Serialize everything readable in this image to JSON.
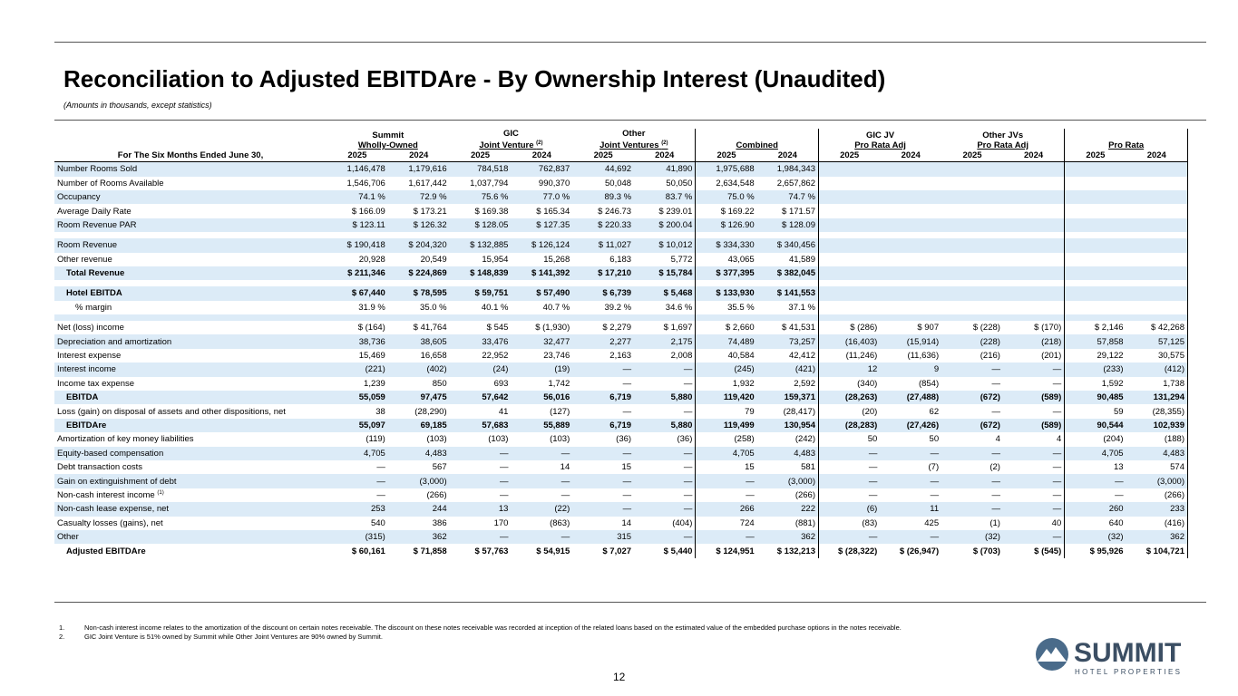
{
  "header": {
    "title": "Reconciliation to Adjusted EBITDAre - By Ownership Interest (Unaudited)",
    "subtitle": "(Amounts in thousands, except statistics)"
  },
  "table": {
    "stub_header": "For The Six Months Ended June 30,",
    "groups": [
      {
        "lines": [
          "Summit",
          "Wholly-Owned"
        ]
      },
      {
        "lines": [
          "GIC",
          "Joint Venture"
        ],
        "note": "(2)"
      },
      {
        "lines": [
          "Other",
          "Joint Ventures"
        ],
        "note": "(2)"
      },
      {
        "lines": [
          "Combined"
        ],
        "boxed": true
      },
      {
        "lines": [
          "GIC JV",
          "Pro Rata Adj"
        ]
      },
      {
        "lines": [
          "Other JVs",
          "Pro Rata Adj"
        ]
      },
      {
        "lines": [
          "Pro Rata"
        ],
        "boxed": true
      }
    ],
    "years": [
      "2025",
      "2024",
      "2025",
      "2024",
      "2025",
      "2024",
      "2025",
      "2024",
      "2025",
      "2024",
      "2025",
      "2024",
      "2025",
      "2024"
    ],
    "sections": [
      [
        {
          "label": "Number Rooms Sold",
          "cells": [
            "1,146,478",
            "1,179,616",
            "784,518",
            "762,837",
            "44,692",
            "41,890",
            "1,975,688",
            "1,984,343"
          ]
        },
        {
          "label": "Number of Rooms Available",
          "cells": [
            "1,546,706",
            "1,617,442",
            "1,037,794",
            "990,370",
            "50,048",
            "50,050",
            "2,634,548",
            "2,657,862"
          ]
        },
        {
          "label": "Occupancy",
          "cells": [
            "74.1 %",
            "72.9 %",
            "75.6 %",
            "77.0 %",
            "89.3 %",
            "83.7 %",
            "75.0 %",
            "74.7 %"
          ]
        },
        {
          "label": "Average Daily Rate",
          "cells": [
            "$ 166.09",
            "$ 173.21",
            "$ 169.38",
            "$ 165.34",
            "$ 246.73",
            "$ 239.01",
            "$ 169.22",
            "$ 171.57"
          ]
        },
        {
          "label": "Room Revenue PAR",
          "cells": [
            "$ 123.11",
            "$ 126.32",
            "$ 128.05",
            "$ 127.35",
            "$ 220.33",
            "$ 200.04",
            "$ 126.90",
            "$ 128.09"
          ]
        }
      ],
      [
        {
          "label": "Room Revenue",
          "cells": [
            "$ 190,418",
            "$ 204,320",
            "$ 132,885",
            "$ 126,124",
            "$ 11,027",
            "$ 10,012",
            "$ 334,330",
            "$ 340,456"
          ]
        },
        {
          "label": "Other revenue",
          "cells": [
            "20,928",
            "20,549",
            "15,954",
            "15,268",
            "6,183",
            "5,772",
            "43,065",
            "41,589"
          ]
        },
        {
          "label": "Total Revenue",
          "bold": true,
          "indent": 1,
          "cells": [
            "$ 211,346",
            "$ 224,869",
            "$ 148,839",
            "$ 141,392",
            "$ 17,210",
            "$ 15,784",
            "$ 377,395",
            "$ 382,045"
          ]
        }
      ],
      [
        {
          "label": "Hotel EBITDA",
          "bold": true,
          "indent": 1,
          "cells": [
            "$ 67,440",
            "$ 78,595",
            "$ 59,751",
            "$ 57,490",
            "$ 6,739",
            "$ 5,468",
            "$ 133,930",
            "$ 141,553"
          ]
        },
        {
          "label": "% margin",
          "indent": 2,
          "cells": [
            "31.9 %",
            "35.0 %",
            "40.1 %",
            "40.7 %",
            "39.2 %",
            "34.6 %",
            "35.5 %",
            "37.1 %"
          ]
        }
      ],
      [
        {
          "label": "Net (loss) income",
          "cells": [
            "$ (164)",
            "$ 41,764",
            "$ 545",
            "$ (1,930)",
            "$ 2,279",
            "$ 1,697",
            "$ 2,660",
            "$ 41,531",
            "$ (286)",
            "$ 907",
            "$ (228)",
            "$ (170)",
            "$ 2,146",
            "$ 42,268"
          ]
        },
        {
          "label": "Depreciation and amortization",
          "cells": [
            "38,736",
            "38,605",
            "33,476",
            "32,477",
            "2,277",
            "2,175",
            "74,489",
            "73,257",
            "(16,403)",
            "(15,914)",
            "(228)",
            "(218)",
            "57,858",
            "57,125"
          ]
        },
        {
          "label": "Interest expense",
          "cells": [
            "15,469",
            "16,658",
            "22,952",
            "23,746",
            "2,163",
            "2,008",
            "40,584",
            "42,412",
            "(11,246)",
            "(11,636)",
            "(216)",
            "(201)",
            "29,122",
            "30,575"
          ]
        },
        {
          "label": "Interest income",
          "cells": [
            "(221)",
            "(402)",
            "(24)",
            "(19)",
            "—",
            "—",
            "(245)",
            "(421)",
            "12",
            "9",
            "—",
            "—",
            "(233)",
            "(412)"
          ]
        },
        {
          "label": "Income tax expense",
          "cells": [
            "1,239",
            "850",
            "693",
            "1,742",
            "—",
            "—",
            "1,932",
            "2,592",
            "(340)",
            "(854)",
            "—",
            "—",
            "1,592",
            "1,738"
          ]
        },
        {
          "label": "EBITDA",
          "bold": true,
          "indent": 1,
          "cells": [
            "55,059",
            "97,475",
            "57,642",
            "56,016",
            "6,719",
            "5,880",
            "119,420",
            "159,371",
            "(28,263)",
            "(27,488)",
            "(672)",
            "(589)",
            "90,485",
            "131,294"
          ]
        },
        {
          "label": "Loss (gain) on disposal of assets and other dispositions, net",
          "cells": [
            "38",
            "(28,290)",
            "41",
            "(127)",
            "—",
            "—",
            "79",
            "(28,417)",
            "(20)",
            "62",
            "—",
            "—",
            "59",
            "(28,355)"
          ]
        },
        {
          "label": "EBITDAre",
          "bold": true,
          "indent": 1,
          "cells": [
            "55,097",
            "69,185",
            "57,683",
            "55,889",
            "6,719",
            "5,880",
            "119,499",
            "130,954",
            "(28,283)",
            "(27,426)",
            "(672)",
            "(589)",
            "90,544",
            "102,939"
          ]
        },
        {
          "label": "Amortization of key money liabilities",
          "cells": [
            "(119)",
            "(103)",
            "(103)",
            "(103)",
            "(36)",
            "(36)",
            "(258)",
            "(242)",
            "50",
            "50",
            "4",
            "4",
            "(204)",
            "(188)"
          ]
        },
        {
          "label": "Equity-based compensation",
          "cells": [
            "4,705",
            "4,483",
            "—",
            "—",
            "—",
            "—",
            "4,705",
            "4,483",
            "—",
            "—",
            "—",
            "—",
            "4,705",
            "4,483"
          ]
        },
        {
          "label": "Debt transaction costs",
          "cells": [
            "—",
            "567",
            "—",
            "14",
            "15",
            "—",
            "15",
            "581",
            "—",
            "(7)",
            "(2)",
            "—",
            "13",
            "574"
          ]
        },
        {
          "label": "Gain on extinguishment of debt",
          "cells": [
            "—",
            "(3,000)",
            "—",
            "—",
            "—",
            "—",
            "—",
            "(3,000)",
            "—",
            "—",
            "—",
            "—",
            "—",
            "(3,000)"
          ]
        },
        {
          "label": "Non-cash interest income",
          "note": "(1)",
          "cells": [
            "—",
            "(266)",
            "—",
            "—",
            "—",
            "—",
            "—",
            "(266)",
            "—",
            "—",
            "—",
            "—",
            "—",
            "(266)"
          ]
        },
        {
          "label": "Non-cash lease expense, net",
          "cells": [
            "253",
            "244",
            "13",
            "(22)",
            "—",
            "—",
            "266",
            "222",
            "(6)",
            "11",
            "—",
            "—",
            "260",
            "233"
          ]
        },
        {
          "label": "Casualty losses (gains), net",
          "cells": [
            "540",
            "386",
            "170",
            "(863)",
            "14",
            "(404)",
            "724",
            "(881)",
            "(83)",
            "425",
            "(1)",
            "40",
            "640",
            "(416)"
          ]
        },
        {
          "label": "Other",
          "cells": [
            "(315)",
            "362",
            "—",
            "—",
            "315",
            "—",
            "—",
            "362",
            "—",
            "—",
            "(32)",
            "—",
            "(32)",
            "362"
          ]
        },
        {
          "label": "Adjusted EBITDAre",
          "bold": true,
          "indent": 1,
          "cells": [
            "$ 60,161",
            "$ 71,858",
            "$ 57,763",
            "$ 54,915",
            "$ 7,027",
            "$ 5,440",
            "$ 124,951",
            "$ 132,213",
            "$ (28,322)",
            "$ (26,947)",
            "$ (703)",
            "$ (545)",
            "$ 95,926",
            "$ 104,721"
          ]
        }
      ]
    ]
  },
  "footnotes": [
    {
      "marker": "1.",
      "text": "Non-cash interest income relates to the amortization of the discount on certain notes receivable. The discount on these notes receivable was recorded at inception of the related loans based on the estimated value of the embedded purchase options in the notes receivable."
    },
    {
      "marker": "2.",
      "text": "GIC Joint Venture is 51% owned by Summit while Other Joint Ventures are 90% owned by Summit."
    }
  ],
  "page_number": "12",
  "logo": {
    "name": "SUMMIT",
    "tagline": "HOTEL PROPERTIES"
  }
}
